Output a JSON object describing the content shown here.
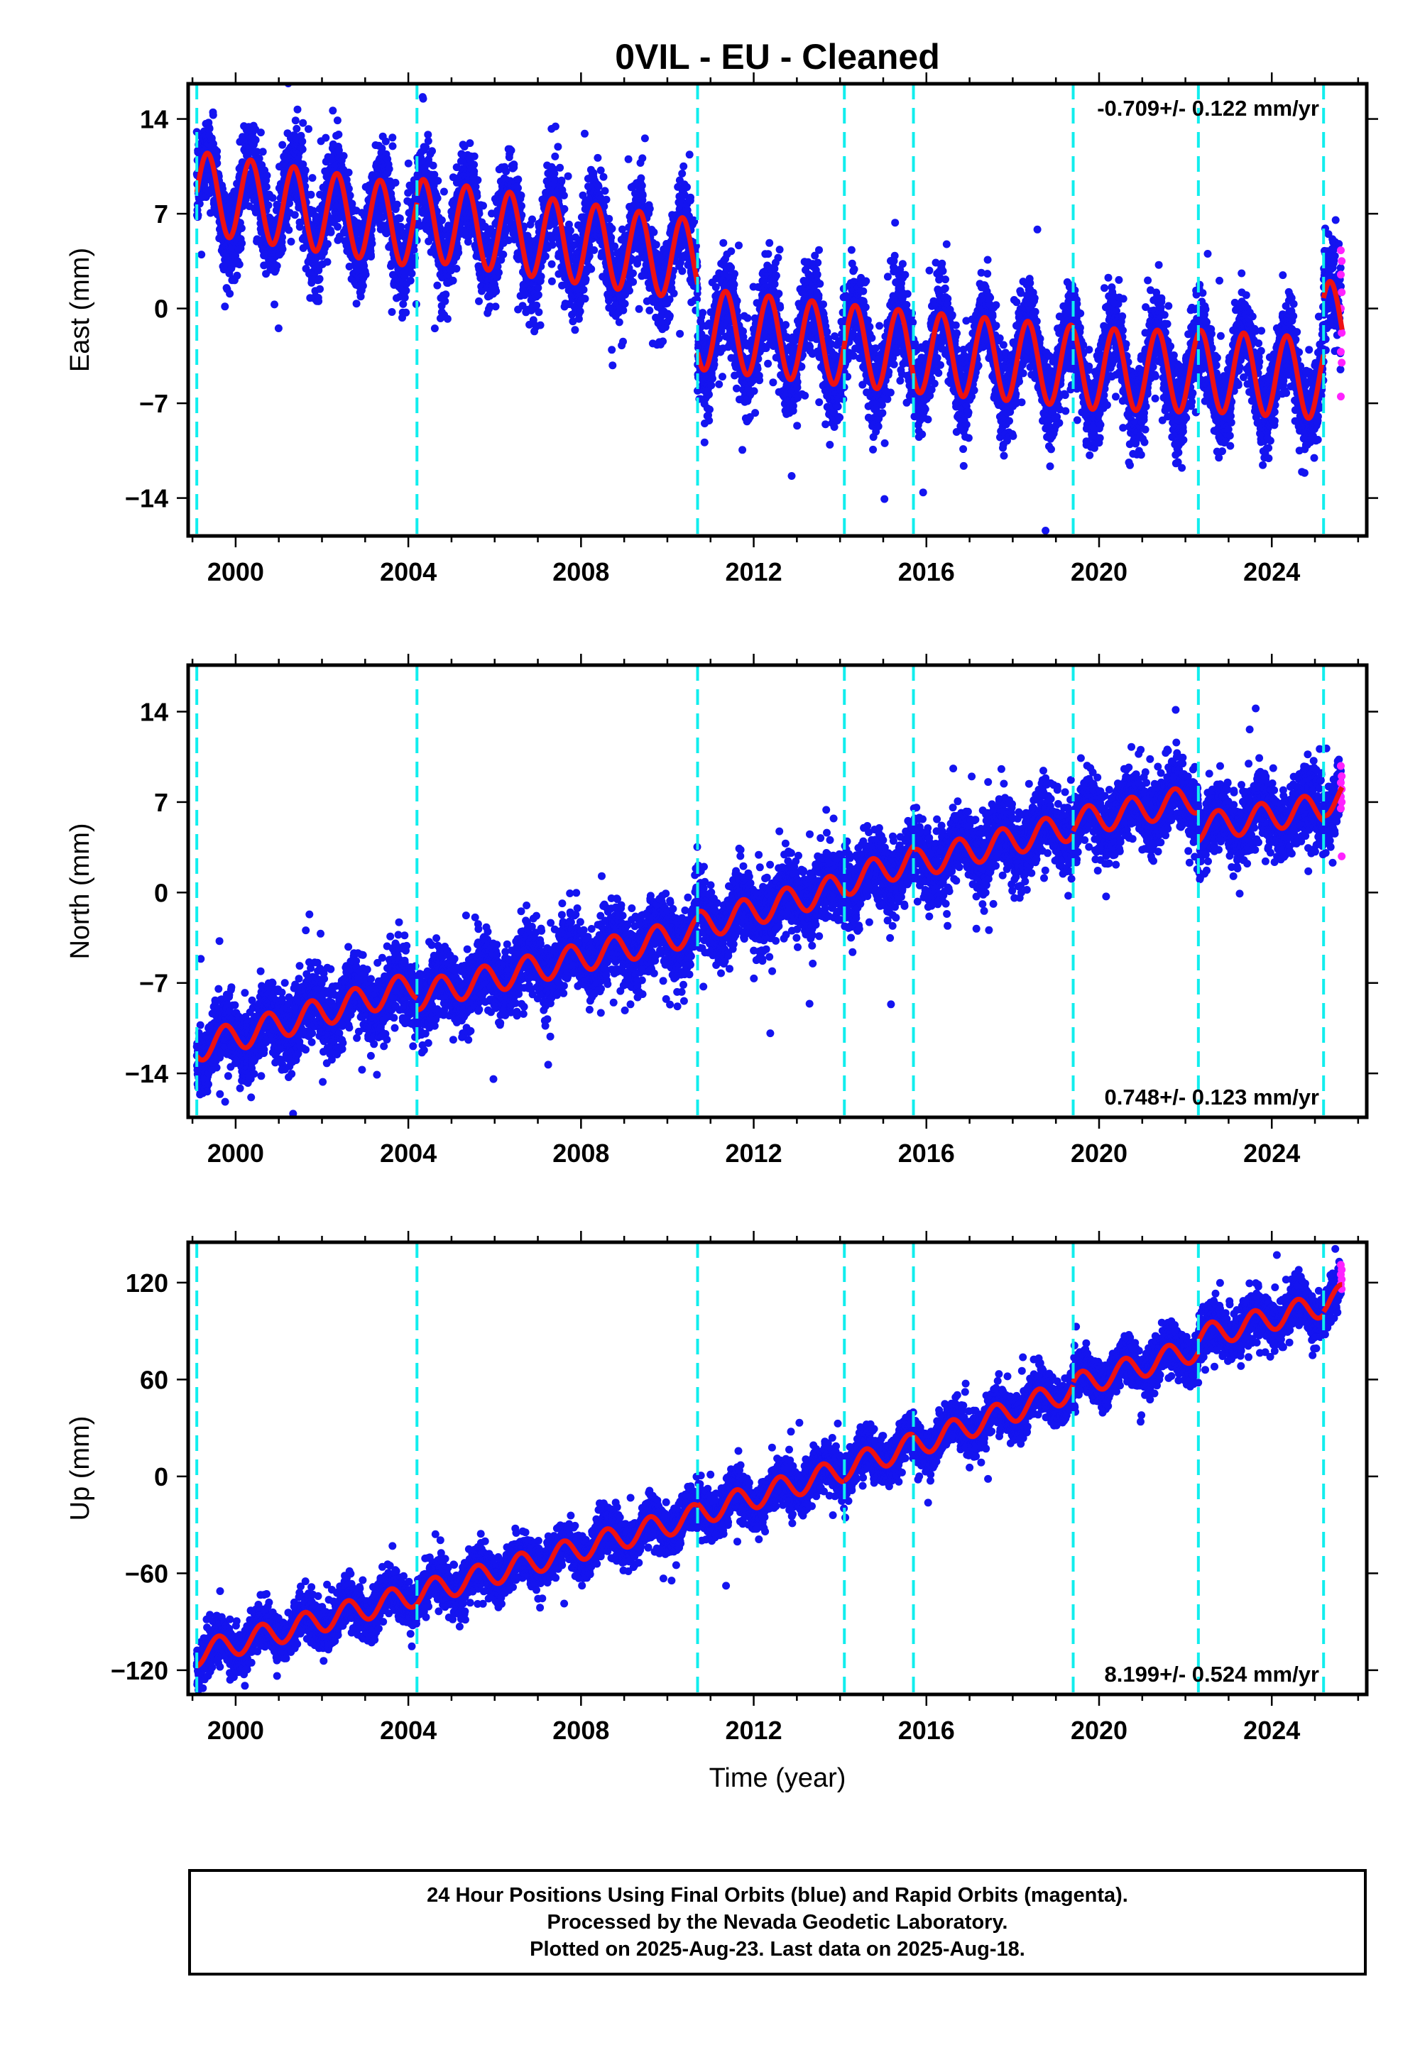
{
  "title": "0VIL  - EU - Cleaned",
  "colors": {
    "final_orbits": "#1414f0",
    "rapid_orbits": "#ff22ff",
    "model_fit": "#ee1111",
    "equipment_change": "#11eeee",
    "axis": "#000000"
  },
  "footer": {
    "line1": "24 Hour Positions Using Final Orbits (blue) and Rapid Orbits (magenta).",
    "line2": "Processed by the Nevada Geodetic Laboratory.",
    "line3": "Plotted on 2025-Aug-23. Last data on 2025-Aug-18."
  },
  "chart_data": [
    {
      "type": "scatter",
      "component": "East",
      "ylabel": "East (mm)",
      "xlabel": "",
      "xlim": [
        1998.9,
        2026.2
      ],
      "ylim": [
        -16.8,
        16.6
      ],
      "xticks": [
        2000,
        2004,
        2008,
        2012,
        2016,
        2020,
        2024
      ],
      "yticks": [
        14,
        7,
        0,
        -7,
        -14
      ],
      "ytick_labels": [
        "14",
        "7",
        "0",
        "−7",
        "−14"
      ],
      "rate_label": "-0.709+/- 0.122 mm/yr",
      "rate_label_position": "top-right",
      "equipment_changes": [
        1999.1,
        2004.2,
        2010.7,
        2014.1,
        2015.7,
        2019.4,
        2022.3,
        2025.2
      ],
      "model": {
        "segments": [
          {
            "x": [
              1999.1,
              2004.2
            ],
            "offset_start": 8.6,
            "slope": -0.5
          },
          {
            "x": [
              2004.2,
              2010.7
            ],
            "offset_start": 6.6,
            "slope": -0.47
          },
          {
            "x": [
              2010.7,
              2014.1
            ],
            "offset_start": -1.5,
            "slope": -0.35
          },
          {
            "x": [
              2014.1,
              2015.7
            ],
            "offset_start": -2.7,
            "slope": -0.3
          },
          {
            "x": [
              2015.7,
              2019.4
            ],
            "offset_start": -3.2,
            "slope": -0.28
          },
          {
            "x": [
              2019.4,
              2022.3
            ],
            "offset_start": -4.4,
            "slope": -0.1
          },
          {
            "x": [
              2022.3,
              2025.2
            ],
            "offset_start": -4.6,
            "slope": -0.2
          },
          {
            "x": [
              2025.2,
              2025.63
            ],
            "offset_start": -1.0,
            "slope": 0.0
          }
        ],
        "annual_amplitude": 3.0,
        "annual_phase_year": 2000.35,
        "scatter_sigma": 1.6
      },
      "rapid_points": [
        4.3,
        3.5,
        2.5,
        1.2,
        0.0,
        -1.8,
        -3.2,
        -4.0,
        -6.5
      ]
    },
    {
      "type": "scatter",
      "component": "North",
      "ylabel": "North (mm)",
      "xlabel": "",
      "xlim": [
        1998.9,
        2026.2
      ],
      "ylim": [
        -17.4,
        17.6
      ],
      "xticks": [
        2000,
        2004,
        2008,
        2012,
        2016,
        2020,
        2024
      ],
      "yticks": [
        14,
        7,
        0,
        -7,
        -14
      ],
      "ytick_labels": [
        "14",
        "7",
        "0",
        "−7",
        "−14"
      ],
      "rate_label": "0.748+/- 0.123 mm/yr",
      "rate_label_position": "bottom-right",
      "equipment_changes": [
        1999.1,
        2004.2,
        2010.7,
        2014.1,
        2015.7,
        2019.4,
        2022.3,
        2025.2
      ],
      "model": {
        "segments": [
          {
            "x": [
              1999.1,
              2004.2
            ],
            "offset_start": -12.0,
            "slope": 0.95
          },
          {
            "x": [
              2004.2,
              2010.7
            ],
            "offset_start": -8.0,
            "slope": 0.78
          },
          {
            "x": [
              2010.7,
              2014.1
            ],
            "offset_start": -2.6,
            "slope": 0.9
          },
          {
            "x": [
              2014.1,
              2015.7
            ],
            "offset_start": 0.8,
            "slope": 1.1
          },
          {
            "x": [
              2015.7,
              2019.4
            ],
            "offset_start": 2.2,
            "slope": 0.8
          },
          {
            "x": [
              2019.4,
              2022.3
            ],
            "offset_start": 5.4,
            "slope": 0.65
          },
          {
            "x": [
              2022.3,
              2025.2
            ],
            "offset_start": 5.0,
            "slope": 0.55
          },
          {
            "x": [
              2025.2,
              2025.63
            ],
            "offset_start": 7.0,
            "slope": 0.8
          }
        ],
        "annual_amplitude": 1.1,
        "annual_phase_year": 2000.75,
        "scatter_sigma": 1.3
      },
      "rapid_points": [
        9.8,
        9.0,
        8.5,
        8.0,
        7.4,
        7.0,
        6.5,
        2.8
      ]
    },
    {
      "type": "scatter",
      "component": "Up",
      "ylabel": "Up (mm)",
      "xlabel": "Time (year)",
      "xlim": [
        1998.9,
        2026.2
      ],
      "ylim": [
        -135,
        145
      ],
      "xticks": [
        2000,
        2004,
        2008,
        2012,
        2016,
        2020,
        2024
      ],
      "yticks": [
        120,
        60,
        0,
        -60,
        -120
      ],
      "ytick_labels": [
        "120",
        "60",
        "0",
        "−60",
        "−120"
      ],
      "rate_label": "8.199+/- 0.524 mm/yr",
      "rate_label_position": "bottom-right",
      "equipment_changes": [
        1999.1,
        2004.2,
        2010.7,
        2014.1,
        2015.7,
        2019.4,
        2022.3,
        2025.2
      ],
      "model": {
        "segments": [
          {
            "x": [
              1999.1,
              2004.2
            ],
            "offset_start": -110,
            "slope": 7.3
          },
          {
            "x": [
              2004.2,
              2010.7
            ],
            "offset_start": -73,
            "slope": 7.5
          },
          {
            "x": [
              2010.7,
              2014.1
            ],
            "offset_start": -23,
            "slope": 8.0
          },
          {
            "x": [
              2014.1,
              2015.7
            ],
            "offset_start": 5,
            "slope": 9.0
          },
          {
            "x": [
              2015.7,
              2019.4
            ],
            "offset_start": 19,
            "slope": 9.5
          },
          {
            "x": [
              2019.4,
              2022.3
            ],
            "offset_start": 56,
            "slope": 8.0
          },
          {
            "x": [
              2022.3,
              2025.2
            ],
            "offset_start": 86,
            "slope": 7.0
          },
          {
            "x": [
              2025.2,
              2025.63
            ],
            "offset_start": 108,
            "slope": 8.0
          }
        ],
        "annual_amplitude": 7.5,
        "annual_phase_year": 2000.6,
        "scatter_sigma": 6.5
      },
      "rapid_points": [
        131,
        128,
        125,
        122,
        119,
        116
      ]
    }
  ]
}
